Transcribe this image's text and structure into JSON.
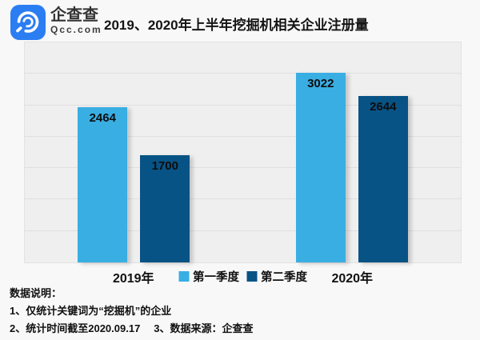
{
  "brand": {
    "name": "企查查",
    "domain": "Qcc.com"
  },
  "header": {
    "title": "2019、2020年上半年挖掘机相关企业注册量"
  },
  "chart_data": {
    "type": "bar",
    "title": "2019、2020年上半年挖掘机相关企业注册量",
    "categories": [
      "2019年",
      "2020年"
    ],
    "series": [
      {
        "name": "第一季度",
        "color": "#39AEE3",
        "values": [
          2464,
          3022
        ]
      },
      {
        "name": "第二季度",
        "color": "#085385",
        "values": [
          1700,
          2644
        ]
      }
    ],
    "xlabel": "",
    "ylabel": "",
    "ylim": [
      0,
      3500
    ],
    "gridline_step": 500,
    "grid": true,
    "legend_position": "bottom-center",
    "value_label_position": "inside-top"
  },
  "notes": {
    "heading": "数据说明：",
    "items": [
      "1、仅统计关键词为“挖掘机”的企业",
      "2、统计时间截至2020.09.17",
      "3、数据来源：企查查"
    ]
  },
  "colors": {
    "series_q1": "#39AEE3",
    "series_q2": "#085385",
    "logo_bg": "#2B7DF2",
    "plot_bg": "#EFEFEF",
    "page_bg": "#F8F8F8",
    "gridline": "#E0E0E0"
  }
}
